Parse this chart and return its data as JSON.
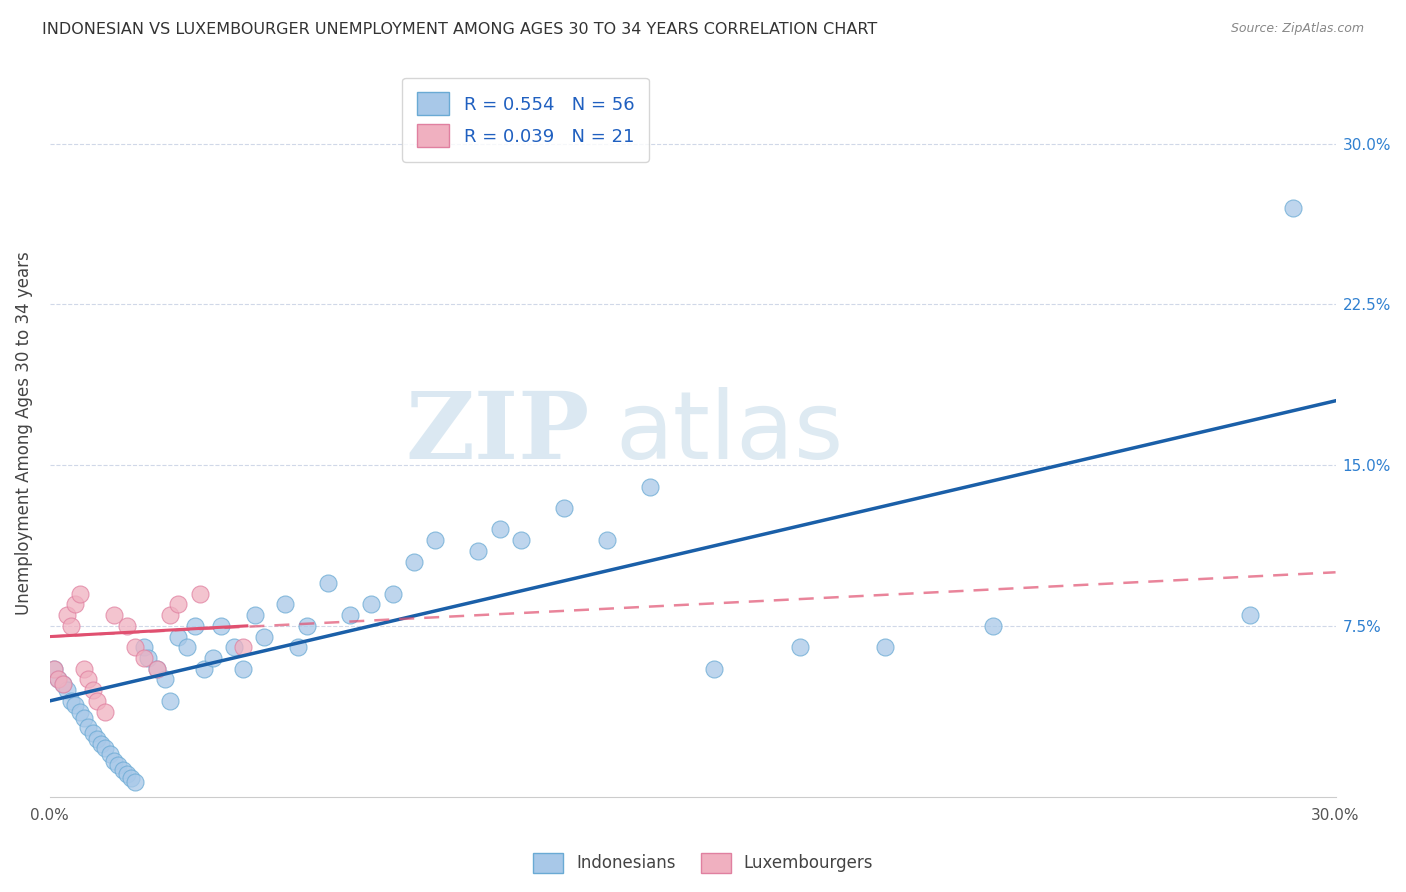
{
  "title": "INDONESIAN VS LUXEMBOURGER UNEMPLOYMENT AMONG AGES 30 TO 34 YEARS CORRELATION CHART",
  "source": "Source: ZipAtlas.com",
  "ylabel": "Unemployment Among Ages 30 to 34 years",
  "xlim": [
    0,
    0.3
  ],
  "ylim": [
    -0.005,
    0.335
  ],
  "yticks_right": [
    0.0,
    0.075,
    0.15,
    0.225,
    0.3
  ],
  "yticklabels_right": [
    "",
    "7.5%",
    "15.0%",
    "22.5%",
    "30.0%"
  ],
  "blue_color": "#a8c8e8",
  "blue_edge_color": "#6aaad4",
  "blue_line_color": "#1a5fa8",
  "pink_color": "#f0b0c0",
  "pink_edge_color": "#e080a0",
  "pink_line_color": "#e05070",
  "R_blue": 0.554,
  "N_blue": 56,
  "R_pink": 0.039,
  "N_pink": 21,
  "blue_x": [
    0.001,
    0.002,
    0.003,
    0.004,
    0.005,
    0.006,
    0.007,
    0.008,
    0.009,
    0.01,
    0.011,
    0.012,
    0.013,
    0.014,
    0.015,
    0.016,
    0.017,
    0.018,
    0.019,
    0.02,
    0.022,
    0.023,
    0.025,
    0.027,
    0.028,
    0.03,
    0.032,
    0.034,
    0.036,
    0.038,
    0.04,
    0.043,
    0.045,
    0.048,
    0.05,
    0.055,
    0.058,
    0.06,
    0.065,
    0.07,
    0.075,
    0.08,
    0.085,
    0.09,
    0.1,
    0.105,
    0.11,
    0.12,
    0.13,
    0.14,
    0.155,
    0.175,
    0.195,
    0.22,
    0.28,
    0.29
  ],
  "blue_y": [
    0.055,
    0.05,
    0.048,
    0.045,
    0.04,
    0.038,
    0.035,
    0.032,
    0.028,
    0.025,
    0.022,
    0.02,
    0.018,
    0.015,
    0.012,
    0.01,
    0.008,
    0.006,
    0.004,
    0.002,
    0.065,
    0.06,
    0.055,
    0.05,
    0.04,
    0.07,
    0.065,
    0.075,
    0.055,
    0.06,
    0.075,
    0.065,
    0.055,
    0.08,
    0.07,
    0.085,
    0.065,
    0.075,
    0.095,
    0.08,
    0.085,
    0.09,
    0.105,
    0.115,
    0.11,
    0.12,
    0.115,
    0.13,
    0.115,
    0.14,
    0.055,
    0.065,
    0.065,
    0.075,
    0.08,
    0.27
  ],
  "pink_x": [
    0.001,
    0.002,
    0.003,
    0.004,
    0.005,
    0.006,
    0.007,
    0.008,
    0.009,
    0.01,
    0.011,
    0.013,
    0.015,
    0.018,
    0.02,
    0.022,
    0.025,
    0.028,
    0.03,
    0.035,
    0.045
  ],
  "pink_y": [
    0.055,
    0.05,
    0.048,
    0.08,
    0.075,
    0.085,
    0.09,
    0.055,
    0.05,
    0.045,
    0.04,
    0.035,
    0.08,
    0.075,
    0.065,
    0.06,
    0.055,
    0.08,
    0.085,
    0.09,
    0.065
  ],
  "watermark_zip": "ZIP",
  "watermark_atlas": "atlas",
  "grid_color": "#d0d8e8",
  "background_color": "#ffffff",
  "legend_label_blue": "Indonesians",
  "legend_label_pink": "Luxembourgers"
}
